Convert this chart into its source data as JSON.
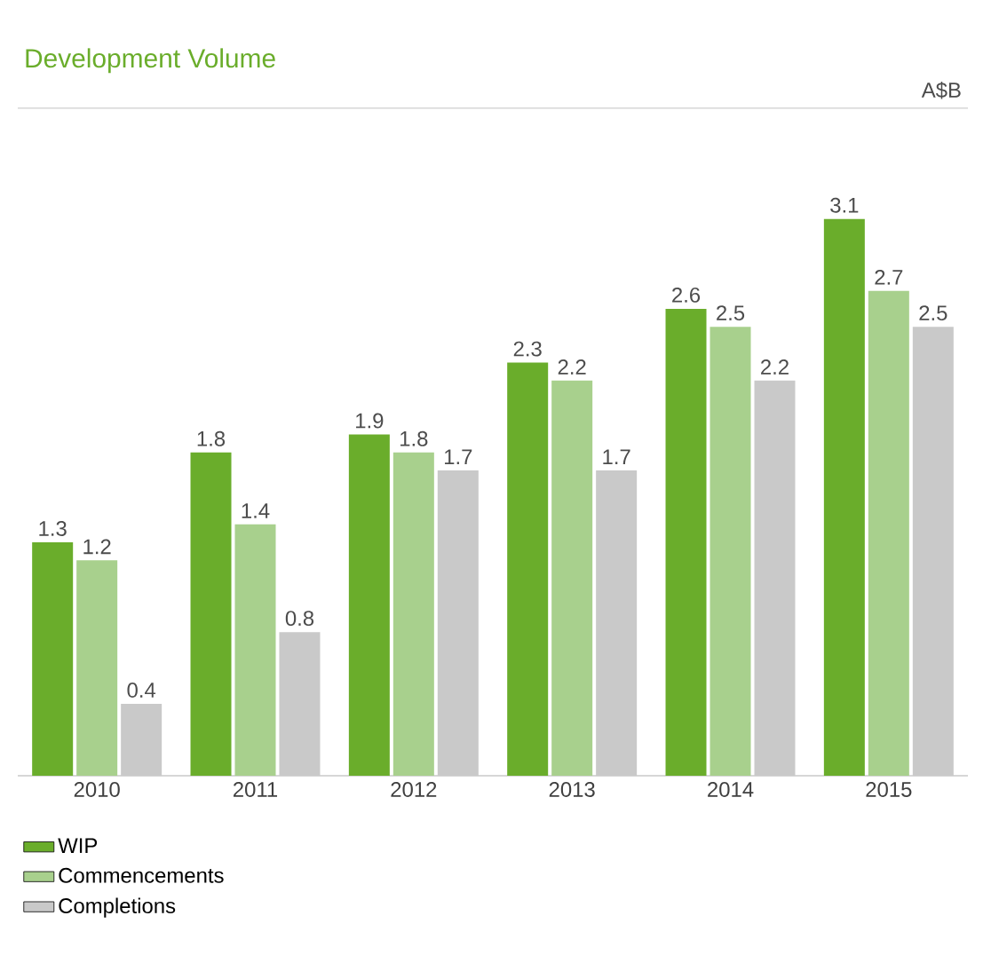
{
  "chart_data": {
    "type": "bar",
    "title": "Development Volume",
    "annotations": [
      "A$B"
    ],
    "categories": [
      "2010",
      "2011",
      "2012",
      "2013",
      "2014",
      "2015"
    ],
    "series": [
      {
        "name": "WIP",
        "color": "#6aad2b",
        "values": [
          1.3,
          1.8,
          1.9,
          2.3,
          2.6,
          3.1
        ]
      },
      {
        "name": "Commencements",
        "color": "#a8d08d",
        "values": [
          1.2,
          1.4,
          1.8,
          2.2,
          2.5,
          2.7
        ]
      },
      {
        "name": "Completions",
        "color": "#c9c9c9",
        "values": [
          0.4,
          0.8,
          1.7,
          1.7,
          2.2,
          2.5
        ]
      }
    ],
    "data_labels": true,
    "legend": "bottom"
  }
}
